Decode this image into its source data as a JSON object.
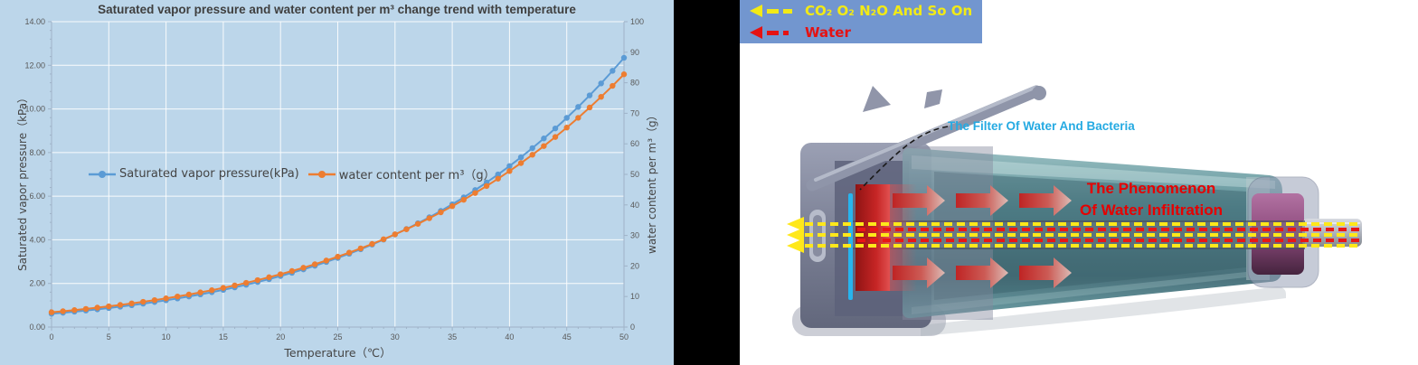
{
  "chart": {
    "title": "Saturated vapor pressure and water content per m³ change trend with temperature",
    "x_axis_title": "Temperature（℃）",
    "y_left_title": "Saturated vapor pressure（kPa）",
    "y_right_title": "water content per m³（g）",
    "legend": [
      {
        "label": "Saturated vapor pressure(kPa)",
        "color": "#5b9bd5"
      },
      {
        "label": "water content per m³（g）",
        "color": "#ed7d31"
      }
    ],
    "colors": {
      "background": "#bcd6ea",
      "gridline": "#ffffff",
      "axis": "#9fb3c8",
      "tick_text": "#595959"
    }
  },
  "chart_data": {
    "type": "line",
    "title": "Saturated vapor pressure and water content per m³ change trend with temperature",
    "xlabel": "Temperature（℃）",
    "x_range": [
      0,
      50
    ],
    "x_major_step": 5,
    "x_minor_step": 1,
    "grid": true,
    "legend_position": "inside-left",
    "x": [
      0,
      1,
      2,
      3,
      4,
      5,
      6,
      7,
      8,
      9,
      10,
      11,
      12,
      13,
      14,
      15,
      16,
      17,
      18,
      19,
      20,
      21,
      22,
      23,
      24,
      25,
      26,
      27,
      28,
      29,
      30,
      31,
      32,
      33,
      34,
      35,
      36,
      37,
      38,
      39,
      40,
      41,
      42,
      43,
      44,
      45,
      46,
      47,
      48,
      49,
      50
    ],
    "y_left": {
      "min": 0,
      "max": 14,
      "major_step": 2,
      "minor_step": 0.4,
      "decimals": 2
    },
    "y_right": {
      "min": 0,
      "max": 100,
      "major_step": 10,
      "decimals": 0
    },
    "series": [
      {
        "name": "Saturated vapor pressure(kPa)",
        "axis": "left",
        "color": "#5b9bd5",
        "values": [
          0.611,
          0.657,
          0.706,
          0.758,
          0.813,
          0.872,
          0.935,
          1.002,
          1.073,
          1.148,
          1.228,
          1.313,
          1.403,
          1.498,
          1.599,
          1.706,
          1.819,
          1.938,
          2.064,
          2.198,
          2.339,
          2.488,
          2.645,
          2.81,
          2.985,
          3.169,
          3.363,
          3.567,
          3.782,
          4.008,
          4.246,
          4.495,
          4.758,
          5.034,
          5.323,
          5.627,
          5.945,
          6.28,
          6.63,
          6.997,
          7.381,
          7.784,
          8.205,
          8.646,
          9.106,
          9.589,
          10.094,
          10.622,
          11.171,
          11.748,
          12.344
        ]
      },
      {
        "name": "water content per m³（g）",
        "axis": "right",
        "color": "#ed7d31",
        "values": [
          4.85,
          5.19,
          5.56,
          5.95,
          6.36,
          6.79,
          7.26,
          7.75,
          8.27,
          8.82,
          9.4,
          10.01,
          10.66,
          11.35,
          12.07,
          12.83,
          13.63,
          14.48,
          15.37,
          16.31,
          17.3,
          18.34,
          19.43,
          20.57,
          21.78,
          23.04,
          24.37,
          25.76,
          27.22,
          28.75,
          30.36,
          32.03,
          33.79,
          35.64,
          37.56,
          39.58,
          41.68,
          43.89,
          46.18,
          48.58,
          51.09,
          53.7,
          56.43,
          59.27,
          62.24,
          65.32,
          68.52,
          71.9,
          75.39,
          78.98,
          82.77
        ]
      }
    ]
  },
  "diagram": {
    "gas_legend": {
      "background": "#7296cf",
      "rows": [
        {
          "label": "CO₂ O₂ N₂O And So On",
          "color": "#f2ea16",
          "arrow": "yellow-dashed-left-arrow"
        },
        {
          "label": "Water",
          "color": "#e51212",
          "arrow": "red-dashed-left-arrow"
        }
      ]
    },
    "labels": {
      "filter": "The Filter Of Water And Bacteria",
      "phenomenon_line1": "The Phenomenon",
      "phenomenon_line2": "Of Water Infiltration"
    },
    "colors": {
      "gas_dash": "#ffe81a",
      "water_dash": "#e81616",
      "filter_line": "#27b4ee",
      "body_grey": "#8d92a6",
      "cone_teal": "#4d858e",
      "plug_purple": "#8c4a7c",
      "filter_label": "#25aae2",
      "phenomenon_label": "#e60000"
    }
  }
}
